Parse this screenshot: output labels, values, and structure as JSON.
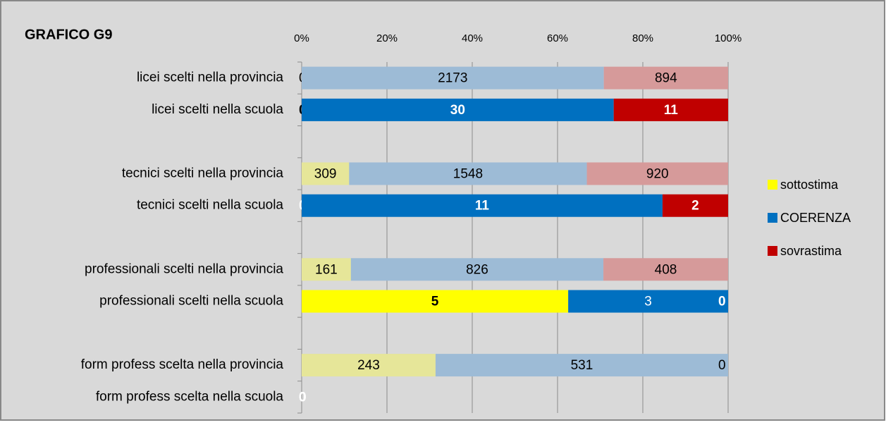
{
  "chart_data": {
    "type": "bar",
    "orientation": "horizontal",
    "stacking": "percent",
    "title": "GRAFICO G9",
    "categories": [
      "licei scelti nella provincia",
      "licei scelti nella scuola",
      null,
      "tecnici scelti nella provincia",
      "tecnici scelti nella scuola",
      null,
      "professionali scelti nella provincia",
      "professionali scelti nella scuola",
      null,
      "form profess scelta nella provincia",
      "form profess scelta nella scuola"
    ],
    "series": [
      {
        "name": "sottostima",
        "color": "#ffff00",
        "values": [
          0,
          0,
          null,
          309,
          0,
          null,
          161,
          5,
          null,
          243,
          0
        ],
        "colors": [
          "#e6e699",
          "#ffff00",
          null,
          "#e6e699",
          "#ffff00",
          null,
          "#e6e699",
          "#ffff00",
          null,
          "#e6e699",
          "#ffff00"
        ]
      },
      {
        "name": "COERENZA",
        "color": "#0070c0",
        "values": [
          2173,
          30,
          null,
          1548,
          11,
          null,
          826,
          3,
          null,
          531,
          0
        ],
        "colors": [
          "#9dbbd6",
          "#0070c0",
          null,
          "#9dbbd6",
          "#0070c0",
          null,
          "#9dbbd6",
          "#0070c0",
          null,
          "#9dbbd6",
          "#0070c0"
        ]
      },
      {
        "name": "sovrastima",
        "color": "#c00000",
        "values": [
          894,
          11,
          null,
          920,
          2,
          null,
          408,
          0,
          null,
          0,
          0
        ],
        "colors": [
          "#d69a9a",
          "#c00000",
          null,
          "#d69a9a",
          "#c00000",
          null,
          "#d69a9a",
          "#c00000",
          null,
          "#d69a9a",
          "#c00000"
        ]
      }
    ],
    "xlim": [
      0,
      100
    ],
    "xticks": [
      {
        "value": 0,
        "label": "0%"
      },
      {
        "value": 20,
        "label": "20%"
      },
      {
        "value": 40,
        "label": "40%"
      },
      {
        "value": 60,
        "label": "60%"
      },
      {
        "value": 80,
        "label": "80%"
      },
      {
        "value": 100,
        "label": "100%"
      }
    ],
    "grid": true,
    "legend": "right"
  }
}
